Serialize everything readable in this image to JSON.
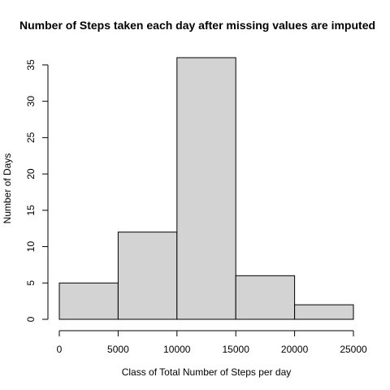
{
  "chart_data": {
    "type": "bar",
    "title": "Number of Steps taken each day after missing values are imputed",
    "xlabel": "Class of Total Number of Steps per day",
    "ylabel": "Number of Days",
    "bins": [
      {
        "from": 0,
        "to": 5000,
        "count": 5
      },
      {
        "from": 5000,
        "to": 10000,
        "count": 12
      },
      {
        "from": 10000,
        "to": 15000,
        "count": 36
      },
      {
        "from": 15000,
        "to": 20000,
        "count": 6
      },
      {
        "from": 20000,
        "to": 25000,
        "count": 2
      }
    ],
    "xticks": [
      "0",
      "5000",
      "10000",
      "15000",
      "20000",
      "25000"
    ],
    "yticks": [
      "0",
      "5",
      "10",
      "15",
      "20",
      "25",
      "30",
      "35"
    ],
    "xlim": [
      0,
      25000
    ],
    "ylim": [
      0,
      36
    ],
    "grid": false,
    "legend": "none",
    "bar_fill": "#d3d3d3",
    "bar_stroke": "#000000"
  }
}
